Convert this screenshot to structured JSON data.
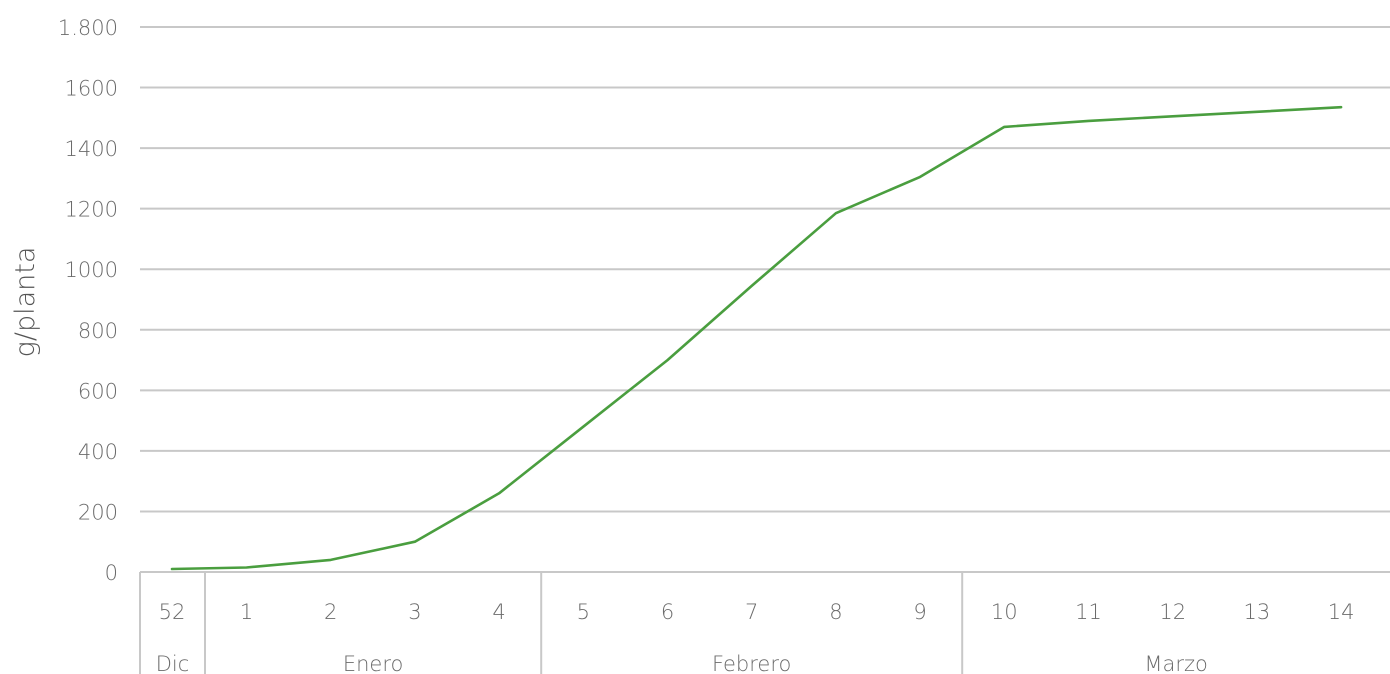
{
  "chart_data": {
    "type": "line",
    "ylabel": "g/planta",
    "xlabel": "",
    "ylim": [
      0,
      1800
    ],
    "y_ticks": [
      {
        "value": 0,
        "label": "0"
      },
      {
        "value": 200,
        "label": "200"
      },
      {
        "value": 400,
        "label": "400"
      },
      {
        "value": 600,
        "label": "600"
      },
      {
        "value": 800,
        "label": "800"
      },
      {
        "value": 1000,
        "label": "1000"
      },
      {
        "value": 1200,
        "label": "1200"
      },
      {
        "value": 1400,
        "label": "1400"
      },
      {
        "value": 1600,
        "label": "1600"
      },
      {
        "value": 1800,
        "label": "1.800"
      }
    ],
    "categories": [
      "52",
      "1",
      "2",
      "3",
      "4",
      "5",
      "6",
      "7",
      "8",
      "9",
      "10",
      "11",
      "12",
      "13",
      "14"
    ],
    "groups": [
      {
        "label": "Dic",
        "count": 1
      },
      {
        "label": "Enero",
        "count": 4
      },
      {
        "label": "Febrero",
        "count": 5
      },
      {
        "label": "Marzo",
        "count": 5
      }
    ],
    "grid": true,
    "series": [
      {
        "color": "#4a9e3f",
        "values": [
          10,
          15,
          40,
          100,
          260,
          480,
          700,
          945,
          1185,
          1305,
          1470,
          1490,
          1505,
          1520,
          1535
        ]
      }
    ]
  }
}
